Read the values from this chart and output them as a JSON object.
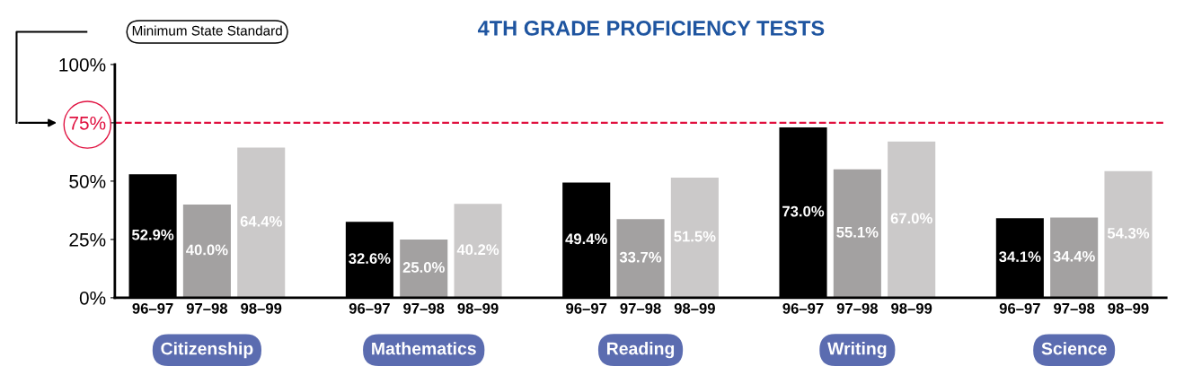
{
  "chart_data": {
    "type": "bar",
    "title": "4TH GRADE PROFICIENCY TESTS",
    "categories": [
      "96–97",
      "97–98",
      "98–99",
      null,
      "96–97",
      "97–98",
      "98–99",
      null,
      "96–97",
      "97–98",
      "98–99",
      null,
      "96–97",
      "97–98",
      "98–99",
      null,
      "96–97",
      "97–98",
      "98–99"
    ],
    "values": [
      52.9,
      40.0,
      64.4,
      null,
      32.6,
      25.0,
      40.2,
      null,
      49.4,
      33.7,
      51.5,
      null,
      73.0,
      55.1,
      67.0,
      null,
      34.1,
      34.4,
      54.3
    ],
    "value_labels": [
      "52.9%",
      "40.0%",
      "64.4%",
      null,
      "32.6%",
      "25.0%",
      "40.2%",
      null,
      "49.4%",
      "33.7%",
      "51.5%",
      null,
      "73.0%",
      "55.1%",
      "67.0%",
      null,
      "34.1%",
      "34.4%",
      "54.3%"
    ],
    "colors": [
      "#000000",
      "#a3a1a1",
      "#cbc9c9",
      null,
      "#000000",
      "#a3a1a1",
      "#cbc9c9",
      null,
      "#000000",
      "#a3a1a1",
      "#cbc9c9",
      null,
      "#000000",
      "#a3a1a1",
      "#cbc9c9",
      null,
      "#000000",
      "#a3a1a1",
      "#cbc9c9"
    ],
    "ylim": [
      0,
      100
    ],
    "yticks": [
      {
        "value": 0,
        "label": "0%"
      },
      {
        "value": 25,
        "label": "25%"
      },
      {
        "value": 50,
        "label": "50%"
      },
      {
        "value": 75,
        "label": "75%"
      },
      {
        "value": 100,
        "label": "100%"
      }
    ],
    "ref_lines": [
      {
        "axis": "y",
        "value": 75,
        "color": "#e0103f",
        "line_style": "dashed"
      }
    ],
    "annotations": [
      "Minimum State Standard",
      "Citizenship",
      "Mathematics",
      "Reading",
      "Writing",
      "Science"
    ],
    "grid": false
  }
}
